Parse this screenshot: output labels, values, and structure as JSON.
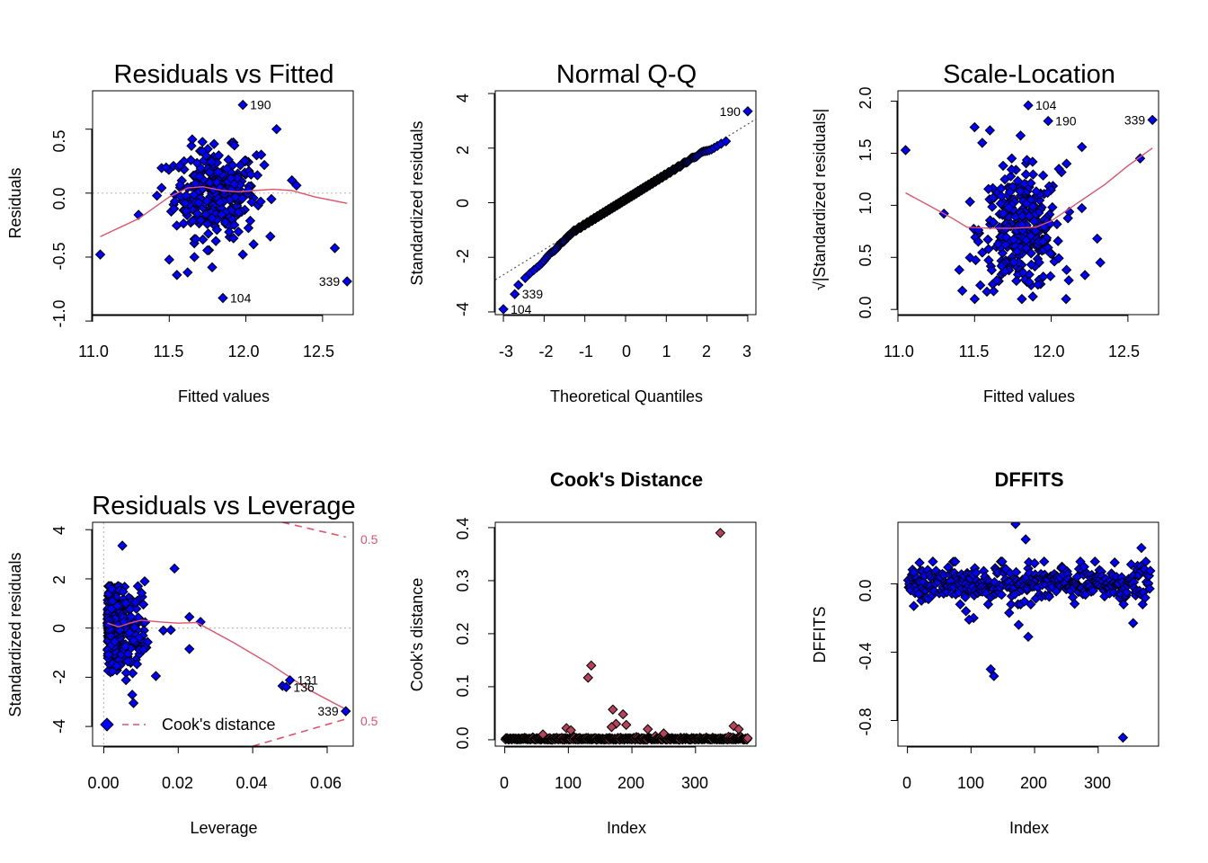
{
  "colors": {
    "point_fill": "#0000ff",
    "point_fill_cooks": "#b5425a",
    "point_stroke": "#000000",
    "smooth": "#df536b",
    "reference": "#bebebe"
  },
  "legend": {
    "label": "Cook's distance"
  },
  "chart_data": [
    {
      "id": "rvf",
      "type": "scatter",
      "title": "Residuals vs Fitted",
      "xlabel": "Fitted values",
      "ylabel": "Residuals",
      "xlim": [
        11.0,
        12.7
      ],
      "ylim": [
        -0.95,
        0.8
      ],
      "xticks": [
        11.0,
        11.5,
        12.0,
        12.5
      ],
      "xticklabels": [
        "11.0",
        "11.5",
        "12.0",
        "12.5"
      ],
      "yticks": [
        -1.0,
        -0.5,
        0.0,
        0.5
      ],
      "yticklabels": [
        "-1.0",
        "-0.5",
        "0.0",
        "0.5"
      ],
      "hline": 0,
      "cluster": {
        "x_center": 11.8,
        "x_spread": 0.24,
        "y_spread": 0.2,
        "count": 300
      },
      "points": [
        {
          "x": 11.05,
          "y": -0.48
        },
        {
          "x": 11.3,
          "y": -0.17
        },
        {
          "x": 11.42,
          "y": -0.02
        },
        {
          "x": 11.5,
          "y": -0.52
        },
        {
          "x": 11.55,
          "y": -0.64
        },
        {
          "x": 11.62,
          "y": -0.62
        },
        {
          "x": 11.78,
          "y": -0.58
        },
        {
          "x": 11.98,
          "y": -0.48
        },
        {
          "x": 12.05,
          "y": -0.4
        },
        {
          "x": 12.1,
          "y": 0.3
        },
        {
          "x": 12.2,
          "y": 0.5
        },
        {
          "x": 12.3,
          "y": 0.1
        },
        {
          "x": 12.33,
          "y": 0.06
        },
        {
          "x": 12.58,
          "y": -0.43
        },
        {
          "x": 11.65,
          "y": 0.42
        },
        {
          "x": 11.48,
          "y": 0.2
        },
        {
          "x": 12.12,
          "y": 0.22
        }
      ],
      "labeled_points": [
        {
          "x": 11.98,
          "y": 0.69,
          "label": "190",
          "side": "right"
        },
        {
          "x": 11.85,
          "y": -0.82,
          "label": "104",
          "side": "right"
        },
        {
          "x": 12.66,
          "y": -0.69,
          "label": "339",
          "side": "left"
        }
      ],
      "smooth": [
        [
          11.05,
          -0.34
        ],
        [
          11.3,
          -0.2
        ],
        [
          11.5,
          -0.03
        ],
        [
          11.62,
          0.04
        ],
        [
          11.72,
          0.05
        ],
        [
          11.85,
          0.02
        ],
        [
          11.95,
          0.01
        ],
        [
          12.05,
          0.02
        ],
        [
          12.18,
          0.03
        ],
        [
          12.3,
          0.02
        ],
        [
          12.45,
          -0.03
        ],
        [
          12.66,
          -0.08
        ]
      ]
    },
    {
      "id": "qq",
      "type": "scatter",
      "title": "Normal Q-Q",
      "xlabel": "Theoretical Quantiles",
      "ylabel": "Standardized residuals",
      "xlim": [
        -3.2,
        3.2
      ],
      "ylim": [
        -4.1,
        4.1
      ],
      "xticks": [
        -3,
        -2,
        -1,
        0,
        1,
        2,
        3
      ],
      "xticklabels": [
        "-3",
        "-2",
        "-1",
        "0",
        "1",
        "2",
        "3"
      ],
      "yticks": [
        -4,
        -2,
        0,
        2,
        4
      ],
      "yticklabels": [
        "-4",
        "-2",
        "0",
        "2",
        "4"
      ],
      "n": 382,
      "qq_line": {
        "intercept": 0.12,
        "slope": 0.92
      },
      "labeled_points": [
        {
          "x": 3.0,
          "y": 3.35,
          "label": "190",
          "side": "left"
        },
        {
          "x": -2.72,
          "y": -3.35,
          "label": "339",
          "side": "right"
        },
        {
          "x": -3.0,
          "y": -3.9,
          "label": "104",
          "side": "right"
        }
      ]
    },
    {
      "id": "sl",
      "type": "scatter",
      "title": "Scale-Location",
      "xlabel": "Fitted values",
      "ylabel": "√|Standardized residuals|",
      "xlim": [
        11.0,
        12.7
      ],
      "ylim": [
        -0.05,
        2.1
      ],
      "xticks": [
        11.0,
        11.5,
        12.0,
        12.5
      ],
      "xticklabels": [
        "11.0",
        "11.5",
        "12.0",
        "12.5"
      ],
      "yticks": [
        0.0,
        0.5,
        1.0,
        1.5,
        2.0
      ],
      "yticklabels": [
        "0.0",
        "0.5",
        "1.0",
        "1.5",
        "2.0"
      ],
      "cluster": {
        "x_center": 11.8,
        "x_spread": 0.24,
        "y_mean": 0.75,
        "y_spread": 0.35,
        "count": 300
      },
      "points": [
        {
          "x": 11.05,
          "y": 1.53
        },
        {
          "x": 11.3,
          "y": 0.92
        },
        {
          "x": 11.4,
          "y": 0.38
        },
        {
          "x": 11.42,
          "y": 0.18
        },
        {
          "x": 11.5,
          "y": 1.75
        },
        {
          "x": 11.55,
          "y": 1.6
        },
        {
          "x": 11.6,
          "y": 1.72
        },
        {
          "x": 11.8,
          "y": 1.67
        },
        {
          "x": 12.05,
          "y": 1.35
        },
        {
          "x": 12.1,
          "y": 1.4
        },
        {
          "x": 12.2,
          "y": 1.56
        },
        {
          "x": 12.3,
          "y": 0.68
        },
        {
          "x": 12.32,
          "y": 0.45
        },
        {
          "x": 12.58,
          "y": 1.45
        },
        {
          "x": 12.1,
          "y": 0.38
        },
        {
          "x": 12.22,
          "y": 0.33
        }
      ],
      "labeled_points": [
        {
          "x": 11.85,
          "y": 1.96,
          "label": "104",
          "side": "right"
        },
        {
          "x": 11.98,
          "y": 1.81,
          "label": "190",
          "side": "right"
        },
        {
          "x": 12.66,
          "y": 1.82,
          "label": "339",
          "side": "left"
        }
      ],
      "smooth": [
        [
          11.05,
          1.12
        ],
        [
          11.2,
          1.0
        ],
        [
          11.35,
          0.88
        ],
        [
          11.45,
          0.79
        ],
        [
          11.6,
          0.78
        ],
        [
          11.75,
          0.78
        ],
        [
          11.9,
          0.79
        ],
        [
          12.0,
          0.85
        ],
        [
          12.1,
          0.95
        ],
        [
          12.2,
          1.05
        ],
        [
          12.35,
          1.2
        ],
        [
          12.5,
          1.38
        ],
        [
          12.66,
          1.55
        ]
      ]
    },
    {
      "id": "rvl",
      "type": "scatter",
      "title": "Residuals vs Leverage",
      "xlabel": "Leverage",
      "ylabel": "Standardized residuals",
      "xlim": [
        -0.003,
        0.067
      ],
      "ylim": [
        -4.8,
        4.3
      ],
      "xticks": [
        0.0,
        0.02,
        0.04,
        0.06
      ],
      "xticklabels": [
        "0.00",
        "0.02",
        "0.04",
        "0.06"
      ],
      "yticks": [
        -4,
        -2,
        0,
        2,
        4
      ],
      "yticklabels": [
        "-4",
        "-2",
        "0",
        "2",
        "4"
      ],
      "hline": 0,
      "vline": 0,
      "cluster": {
        "x_max": 0.012,
        "y_spread": 0.95,
        "count": 300
      },
      "points": [
        {
          "x": 0.005,
          "y": 3.35
        },
        {
          "x": 0.011,
          "y": 1.9
        },
        {
          "x": 0.019,
          "y": 2.42
        },
        {
          "x": 0.014,
          "y": -1.95
        },
        {
          "x": 0.016,
          "y": -0.1
        },
        {
          "x": 0.018,
          "y": -0.08
        },
        {
          "x": 0.023,
          "y": 0.45
        },
        {
          "x": 0.026,
          "y": 0.25
        },
        {
          "x": 0.023,
          "y": -0.85
        },
        {
          "x": 0.048,
          "y": -2.35
        },
        {
          "x": 0.008,
          "y": -3.05
        }
      ],
      "labeled_points": [
        {
          "x": 0.05,
          "y": -2.12,
          "label": "131",
          "side": "right"
        },
        {
          "x": 0.049,
          "y": -2.4,
          "label": "136",
          "side": "right"
        },
        {
          "x": 0.065,
          "y": -3.38,
          "label": "339",
          "side": "left"
        }
      ],
      "smooth": [
        [
          0.001,
          0.2
        ],
        [
          0.004,
          0.05
        ],
        [
          0.007,
          0.2
        ],
        [
          0.01,
          0.32
        ],
        [
          0.015,
          0.25
        ],
        [
          0.02,
          0.2
        ],
        [
          0.025,
          0.22
        ],
        [
          0.035,
          -0.6
        ],
        [
          0.045,
          -1.5
        ],
        [
          0.055,
          -2.5
        ],
        [
          0.065,
          -3.3
        ]
      ],
      "cooks_levels": [
        {
          "value": 0.5,
          "label": "0.5"
        },
        {
          "value": 0.5,
          "label": "0.5"
        }
      ],
      "cooks_upper": [
        [
          0.048,
          4.3
        ],
        [
          0.065,
          3.7
        ]
      ],
      "cooks_lower": [
        [
          0.04,
          -4.8
        ],
        [
          0.065,
          -3.7
        ]
      ]
    },
    {
      "id": "cooks",
      "type": "scatter",
      "title": "Cook's Distance",
      "xlabel": "Index",
      "ylabel": "Cook's distance",
      "xlim": [
        -15,
        395
      ],
      "ylim": [
        -0.012,
        0.41
      ],
      "xticks": [
        0,
        100,
        200,
        300
      ],
      "xticklabels": [
        "0",
        "100",
        "200",
        "300"
      ],
      "yticks": [
        0.0,
        0.1,
        0.2,
        0.3,
        0.4
      ],
      "yticklabels": [
        "0.0",
        "0.1",
        "0.2",
        "0.3",
        "0.4"
      ],
      "n": 382,
      "points": [
        {
          "x": 339,
          "y": 0.39
        },
        {
          "x": 136,
          "y": 0.14
        },
        {
          "x": 131,
          "y": 0.117
        },
        {
          "x": 170,
          "y": 0.057
        },
        {
          "x": 186,
          "y": 0.048
        },
        {
          "x": 175,
          "y": 0.03
        },
        {
          "x": 191,
          "y": 0.028
        },
        {
          "x": 168,
          "y": 0.024
        },
        {
          "x": 97,
          "y": 0.022
        },
        {
          "x": 104,
          "y": 0.018
        },
        {
          "x": 225,
          "y": 0.02
        },
        {
          "x": 360,
          "y": 0.026
        },
        {
          "x": 368,
          "y": 0.02
        },
        {
          "x": 250,
          "y": 0.012
        },
        {
          "x": 60,
          "y": 0.01
        }
      ]
    },
    {
      "id": "dffits",
      "type": "scatter",
      "title": "DFFITS",
      "xlabel": "Index",
      "ylabel": "DFFITS",
      "xlim": [
        -15,
        395
      ],
      "ylim": [
        -0.95,
        0.36
      ],
      "xticks": [
        0,
        100,
        200,
        300
      ],
      "xticklabels": [
        "0",
        "100",
        "200",
        "300"
      ],
      "yticks": [
        -0.8,
        -0.4,
        0.0
      ],
      "yticklabels": [
        "-0.8",
        "-0.4",
        "0.0"
      ],
      "n": 382,
      "points": [
        {
          "x": 170,
          "y": 0.35
        },
        {
          "x": 186,
          "y": 0.26
        },
        {
          "x": 368,
          "y": 0.21
        },
        {
          "x": 131,
          "y": -0.5
        },
        {
          "x": 136,
          "y": -0.54
        },
        {
          "x": 339,
          "y": -0.9
        },
        {
          "x": 190,
          "y": -0.31
        },
        {
          "x": 175,
          "y": -0.24
        },
        {
          "x": 355,
          "y": -0.23
        },
        {
          "x": 104,
          "y": -0.2
        },
        {
          "x": 97,
          "y": -0.21
        },
        {
          "x": 160,
          "y": -0.17
        },
        {
          "x": 10,
          "y": -0.13
        },
        {
          "x": 92,
          "y": -0.16
        },
        {
          "x": 200,
          "y": 0.12
        }
      ]
    }
  ]
}
